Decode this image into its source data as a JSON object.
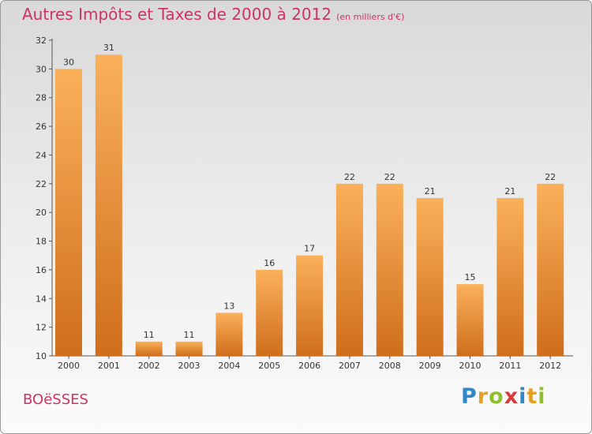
{
  "title": "Autres Impôts et Taxes de 2000 à 2012",
  "subtitle": "(en milliers d'€)",
  "commune": "BOëSSES",
  "logo": {
    "letters": [
      "P",
      "r",
      "o",
      "x",
      "i",
      "t",
      "i"
    ],
    "colors": [
      "#2f88c8",
      "#e5a024",
      "#8fbf2a",
      "#d63a3a",
      "#2f88c8",
      "#e5a024",
      "#8fbf2a"
    ]
  },
  "colors": {
    "bar_light": "#fbb05a",
    "bar_dark": "#cf6e1c",
    "title": "#cc3366"
  },
  "chart_data": {
    "type": "bar",
    "categories": [
      "2000",
      "2001",
      "2002",
      "2003",
      "2004",
      "2005",
      "2006",
      "2007",
      "2008",
      "2009",
      "2010",
      "2011",
      "2012"
    ],
    "values": [
      30,
      31,
      11,
      11,
      13,
      16,
      17,
      22,
      22,
      21,
      15,
      21,
      22
    ],
    "ylim": [
      10,
      32
    ],
    "yticks": [
      10,
      12,
      14,
      16,
      18,
      20,
      22,
      24,
      26,
      28,
      30,
      32
    ],
    "title": "Autres Impôts et Taxes de 2000 à 2012",
    "subtitle": "(en milliers d'€)",
    "xlabel": "",
    "ylabel": "",
    "grid": false,
    "legend": "none"
  }
}
